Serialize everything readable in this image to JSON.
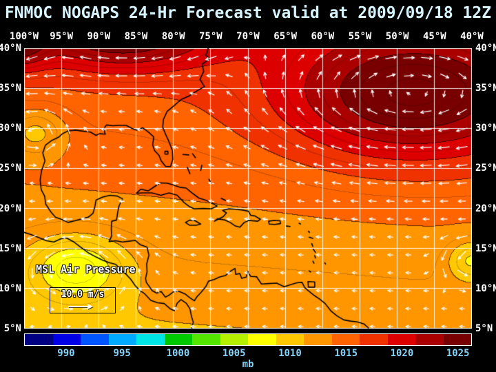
{
  "header": {
    "title": "FNMOC NOGAPS 24-Hr Forecast valid at 2009/09/18 12Z"
  },
  "axes": {
    "longitude_labels": [
      "100°W",
      "95°W",
      "90°W",
      "85°W",
      "80°W",
      "75°W",
      "70°W",
      "65°W",
      "60°W",
      "55°W",
      "50°W",
      "45°W",
      "40°W"
    ],
    "latitude_labels": [
      "40°N",
      "35°N",
      "30°N",
      "25°N",
      "20°N",
      "15°N",
      "10°N",
      "5°N"
    ]
  },
  "map": {
    "field_label": "MSL Air Pressure",
    "wind_scale_label": "10.0 m/s"
  },
  "colorbar": {
    "unit": "mb",
    "tick_labels": [
      "990",
      "995",
      "1000",
      "1005",
      "1010",
      "1015",
      "1020",
      "1025"
    ],
    "colors": [
      "#000082",
      "#0000e6",
      "#0055ff",
      "#00aaff",
      "#00e6e6",
      "#00c800",
      "#55e600",
      "#b4f000",
      "#ffff00",
      "#ffc800",
      "#ff9600",
      "#ff6400",
      "#f03200",
      "#dc0000",
      "#aa0000",
      "#780000"
    ],
    "value_start_mb": 986.25,
    "value_step_mb": 2.5
  },
  "theme": {
    "background": "#000000",
    "title_color": "#d8f4ff",
    "axis_label_color": "#ffffff",
    "tick_color": "#86d2f8",
    "grid_color": "#ffffff",
    "coastline_color": "#000000",
    "arrow_color": "#ffffff"
  },
  "chart_data": {
    "type": "heatmap",
    "title": "FNMOC NOGAPS 24-Hr Forecast valid at 2009/09/18 12Z",
    "field_name": "MSL Air Pressure",
    "units": "mb",
    "model": "FNMOC NOGAPS",
    "forecast_hours": 24,
    "valid_time": "2009/09/18 12Z",
    "lon_ticks_deg_w": [
      100,
      95,
      90,
      85,
      80,
      75,
      70,
      65,
      60,
      55,
      50,
      45,
      40
    ],
    "lat_ticks_deg_n": [
      40,
      35,
      30,
      25,
      20,
      15,
      10,
      5
    ],
    "colorbar_ticks_mb": [
      990,
      995,
      1000,
      1005,
      1010,
      1015,
      1020,
      1025
    ],
    "wind_reference_speed_ms": 10.0,
    "pressure_features": [
      {
        "feature": "subtropical-high-atlantic",
        "lon_w": 48,
        "lat_n": 34,
        "peak_mb": 1026
      },
      {
        "feature": "ridge-north-edge",
        "lon_w": 87,
        "lat_n": 41,
        "peak_mb": 1025
      },
      {
        "feature": "high-northwest-corner",
        "lon_w": 101,
        "lat_n": 41,
        "peak_mb": 1023
      },
      {
        "feature": "low-central-america",
        "lon_w": 93,
        "lat_n": 12.5,
        "min_mb": 1007
      },
      {
        "feature": "weak-low-texas-coast",
        "lon_w": 98.5,
        "lat_n": 29.5,
        "min_mb": 1011
      },
      {
        "feature": "low-east-edge",
        "lon_w": 40,
        "lat_n": 13.5,
        "min_mb": 1008
      }
    ],
    "pressure_field_model": {
      "base_mb": 1010.9,
      "lat_gradient_mb_per_deg": 0.16,
      "lon_gradient_mb_per_deg": 0.012,
      "centers": [
        {
          "lon_w": 48,
          "lat_n": 34,
          "amp_mb": 10.5,
          "rx_deg": 17,
          "ry_deg": 8
        },
        {
          "lon_w": 87,
          "lat_n": 42,
          "amp_mb": 10,
          "rx_deg": 12,
          "ry_deg": 4.5
        },
        {
          "lon_w": 101,
          "lat_n": 41,
          "amp_mb": 8,
          "rx_deg": 4,
          "ry_deg": 3.5
        },
        {
          "lon_w": 98.5,
          "lat_n": 29.5,
          "amp_mb": -4,
          "rx_deg": 4,
          "ry_deg": 3
        },
        {
          "lon_w": 93,
          "lat_n": 12.5,
          "amp_mb": -5.5,
          "rx_deg": 6.5,
          "ry_deg": 4
        },
        {
          "lon_w": 40,
          "lat_n": 13.5,
          "amp_mb": -4.5,
          "rx_deg": 3,
          "ry_deg": 2.5
        }
      ]
    }
  }
}
